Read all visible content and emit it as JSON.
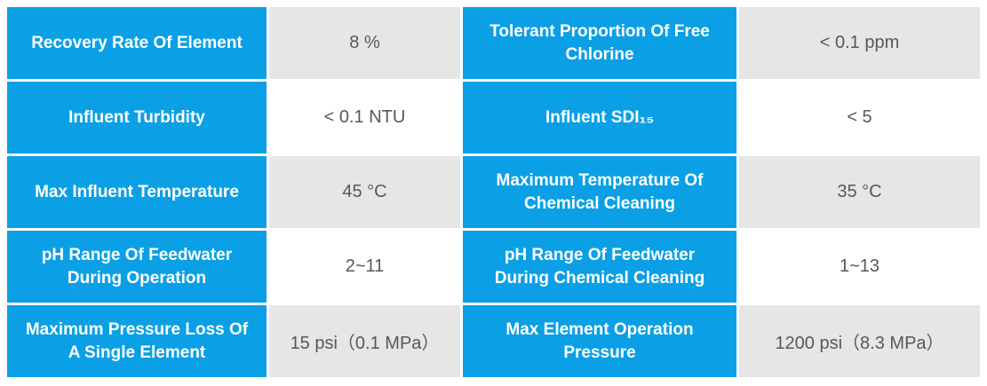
{
  "table": {
    "colors": {
      "accent": "#0BA0E5",
      "value_bg_odd": "#E7E6E6",
      "value_bg_even": "#FFFFFF",
      "value_text": "#595757",
      "label_text": "#FFFFFF"
    },
    "rows": [
      {
        "left_label": "Recovery Rate Of Element",
        "left_value": "8 %",
        "right_label": "Tolerant Proportion Of Free Chlorine",
        "right_value": "< 0.1 ppm"
      },
      {
        "left_label": "Influent Turbidity",
        "left_value": "< 0.1 NTU",
        "right_label": "Influent SDI₁₅",
        "right_value": "< 5"
      },
      {
        "left_label": "Max Influent Temperature",
        "left_value": "45 °C",
        "right_label": "Maximum Temperature Of Chemical Cleaning",
        "right_value": "35 °C"
      },
      {
        "left_label": "pH Range Of Feedwater During Operation",
        "left_value": "2~11",
        "right_label": "pH Range Of Feedwater During Chemical Cleaning",
        "right_value": "1~13"
      },
      {
        "left_label": "Maximum Pressure Loss Of A Single Element",
        "left_value": "15 psi（0.1 MPa）",
        "right_label": "Max Element Operation Pressure",
        "right_value": "1200 psi（8.3 MPa）"
      }
    ]
  }
}
